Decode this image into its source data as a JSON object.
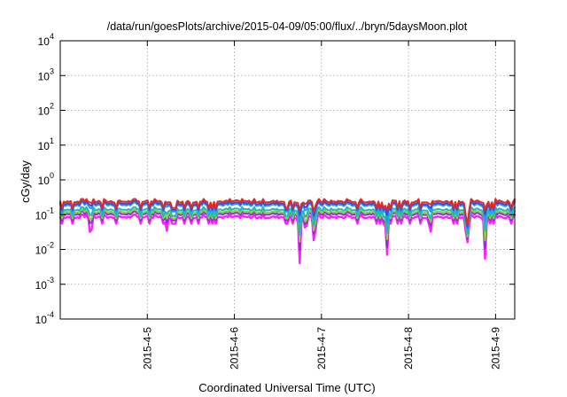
{
  "chart_data": {
    "type": "line",
    "title": "/data/run/goesPlots/archive/2015-04-09/05:00/flux/../bryn/5daysMoon.plot",
    "xlabel": "Coordinated Universal Time (UTC)",
    "ylabel": "cGy/day",
    "yscale": "log",
    "ylim": [
      0.0001,
      10000
    ],
    "xlim_days": [
      4.0,
      9.22
    ],
    "grid": true,
    "y_ticks": [
      {
        "base": "10",
        "exp": "-4",
        "value": 0.0001
      },
      {
        "base": "10",
        "exp": "-3",
        "value": 0.001
      },
      {
        "base": "10",
        "exp": "-2",
        "value": 0.01
      },
      {
        "base": "10",
        "exp": "-1",
        "value": 0.1
      },
      {
        "base": "10",
        "exp": "0",
        "value": 1
      },
      {
        "base": "10",
        "exp": "1",
        "value": 10
      },
      {
        "base": "10",
        "exp": "2",
        "value": 100
      },
      {
        "base": "10",
        "exp": "3",
        "value": 1000
      },
      {
        "base": "10",
        "exp": "4",
        "value": 10000
      }
    ],
    "x_ticks": [
      {
        "label": "2015-4-5",
        "day": 5
      },
      {
        "label": "2015-4-6",
        "day": 6
      },
      {
        "label": "2015-4-7",
        "day": 7
      },
      {
        "label": "2015-4-8",
        "day": 8
      },
      {
        "label": "2015-4-9",
        "day": 9
      }
    ],
    "series": [
      {
        "color": "#e02a2a",
        "baseline": 0.24
      },
      {
        "color": "#3a4fd0",
        "baseline": 0.21
      },
      {
        "color": "#1e9aff",
        "baseline": 0.19
      },
      {
        "color": "#20b8b8",
        "baseline": 0.14
      },
      {
        "color": "#8fcf3a",
        "baseline": 0.12
      },
      {
        "color": "#8a2be2",
        "baseline": 0.105
      },
      {
        "color": "#ff20ff",
        "baseline": 0.085
      }
    ],
    "dips": [
      {
        "day": 4.35,
        "depth": [
          0.9,
          0.85,
          0.75,
          0.6,
          0.5,
          0.4,
          0.2
        ]
      },
      {
        "day": 5.22,
        "depth": [
          0.9,
          0.9,
          0.85,
          0.7,
          0.6,
          0.5,
          0.35
        ]
      },
      {
        "day": 6.75,
        "depth": [
          0.6,
          0.5,
          0.35,
          0.2,
          0.15,
          0.1,
          0.05
        ]
      },
      {
        "day": 6.82,
        "depth": [
          0.8,
          0.7,
          0.6,
          0.5,
          0.4,
          0.35,
          0.35
        ]
      },
      {
        "day": 6.92,
        "depth": [
          0.7,
          0.6,
          0.5,
          0.4,
          0.3,
          0.25,
          0.15
        ]
      },
      {
        "day": 7.75,
        "depth": [
          0.5,
          0.4,
          0.25,
          0.15,
          0.1,
          0.05,
          0.02
        ]
      },
      {
        "day": 8.25,
        "depth": [
          0.8,
          0.7,
          0.6,
          0.5,
          0.45,
          0.4,
          0.3
        ]
      },
      {
        "day": 8.67,
        "depth": [
          0.04,
          0.03,
          0.025,
          0.02,
          0.015,
          0.01,
          0.007
        ]
      },
      {
        "day": 8.88,
        "depth": [
          0.6,
          0.5,
          0.35,
          0.25,
          0.15,
          0.1,
          0.06
        ]
      }
    ]
  }
}
